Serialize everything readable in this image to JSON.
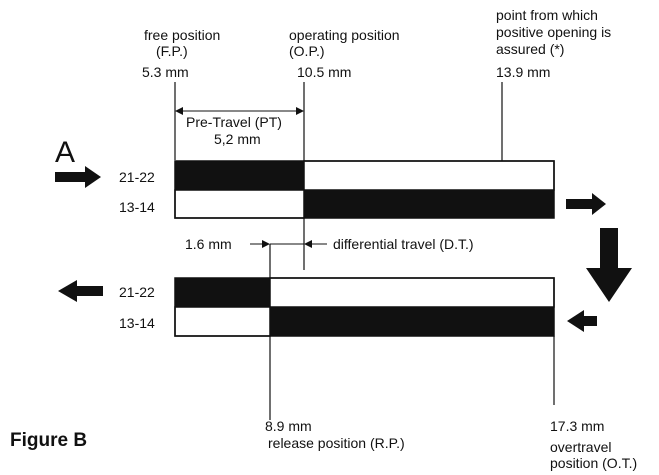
{
  "figure": {
    "big_letter": "A",
    "caption": "Figure B"
  },
  "positions": {
    "fp": {
      "label1": "free position",
      "label2": "(F.P.)",
      "value": "5.3 mm"
    },
    "op": {
      "label1": "operating position",
      "label2": "(O.P.)",
      "value": "10.5 mm"
    },
    "po": {
      "label1": "point from which",
      "label2": "positive opening is",
      "label3": "assured (*)",
      "value": "13.9 mm"
    },
    "rp": {
      "value": "8.9 mm",
      "label": "release position (R.P.)"
    },
    "ot": {
      "value": "17.3 mm",
      "label1": "overtravel",
      "label2": "position (O.T.)"
    }
  },
  "pretravel": {
    "label": "Pre-Travel (PT)",
    "value": "5,2 mm"
  },
  "differential": {
    "value": "1.6 mm",
    "label": "differential travel (D.T.)"
  },
  "top_diagram": {
    "row1": "21-22",
    "row2": "13-14"
  },
  "bottom_diagram": {
    "row1": "21-22",
    "row2": "13-14"
  },
  "colors": {
    "ink": "#111111",
    "background": "#ffffff"
  }
}
